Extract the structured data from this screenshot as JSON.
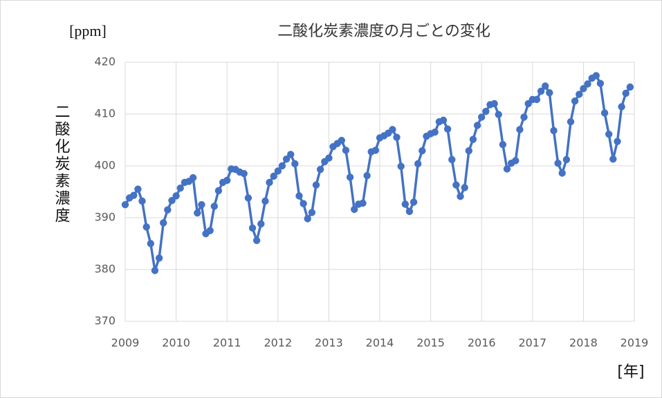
{
  "chart_data": {
    "type": "line",
    "title": "二酸化炭素濃度の月ごとの変化",
    "y_label": "二酸化炭素濃度",
    "y_unit": "[ppm]",
    "x_unit": "[年]",
    "xlim": [
      2009,
      2019
    ],
    "xticks": [
      2009,
      2010,
      2011,
      2012,
      2013,
      2014,
      2015,
      2016,
      2017,
      2018,
      2019
    ],
    "ylim": [
      370,
      420
    ],
    "yticks": [
      370,
      380,
      390,
      400,
      410,
      420
    ],
    "grid": true,
    "x": [
      2009,
      2009.083,
      2009.167,
      2009.25,
      2009.333,
      2009.417,
      2009.5,
      2009.583,
      2009.667,
      2009.75,
      2009.833,
      2009.917,
      2010,
      2010.083,
      2010.167,
      2010.25,
      2010.333,
      2010.417,
      2010.5,
      2010.583,
      2010.667,
      2010.75,
      2010.833,
      2010.917,
      2011,
      2011.083,
      2011.167,
      2011.25,
      2011.333,
      2011.417,
      2011.5,
      2011.583,
      2011.667,
      2011.75,
      2011.833,
      2011.917,
      2012,
      2012.083,
      2012.167,
      2012.25,
      2012.333,
      2012.417,
      2012.5,
      2012.583,
      2012.667,
      2012.75,
      2012.833,
      2012.917,
      2013,
      2013.083,
      2013.167,
      2013.25,
      2013.333,
      2013.417,
      2013.5,
      2013.583,
      2013.667,
      2013.75,
      2013.833,
      2013.917,
      2014,
      2014.083,
      2014.167,
      2014.25,
      2014.333,
      2014.417,
      2014.5,
      2014.583,
      2014.667,
      2014.75,
      2014.833,
      2014.917,
      2015,
      2015.083,
      2015.167,
      2015.25,
      2015.333,
      2015.417,
      2015.5,
      2015.583,
      2015.667,
      2015.75,
      2015.833,
      2015.917,
      2016,
      2016.083,
      2016.167,
      2016.25,
      2016.333,
      2016.417,
      2016.5,
      2016.583,
      2016.667,
      2016.75,
      2016.833,
      2016.917,
      2017,
      2017.083,
      2017.167,
      2017.25,
      2017.333,
      2017.417,
      2017.5,
      2017.583,
      2017.667,
      2017.75,
      2017.833,
      2017.917,
      2018,
      2018.083,
      2018.167,
      2018.25,
      2018.333,
      2018.417,
      2018.5,
      2018.583,
      2018.667,
      2018.75,
      2018.833,
      2018.917
    ],
    "series": [
      {
        "color": "#4472c4",
        "values": [
          392.5,
          393.8,
          394.3,
          395.5,
          393.2,
          388.2,
          385.0,
          379.8,
          382.2,
          389.0,
          391.5,
          393.3,
          394.2,
          395.7,
          396.8,
          397.0,
          397.7,
          390.9,
          392.5,
          386.9,
          387.5,
          392.2,
          395.2,
          396.8,
          397.2,
          399.4,
          399.3,
          398.8,
          398.5,
          393.8,
          388.0,
          385.6,
          388.8,
          393.2,
          396.8,
          398.0,
          399.0,
          400.0,
          401.3,
          402.2,
          400.4,
          394.2,
          392.7,
          389.8,
          391.0,
          396.3,
          399.3,
          400.8,
          401.5,
          403.7,
          404.3,
          404.9,
          403.0,
          397.8,
          391.6,
          392.6,
          392.8,
          398.1,
          402.7,
          403.0,
          405.4,
          405.8,
          406.3,
          407.0,
          405.5,
          399.9,
          392.6,
          391.2,
          393.0,
          400.4,
          402.9,
          405.7,
          406.2,
          406.5,
          408.5,
          408.8,
          407.1,
          401.2,
          396.3,
          394.1,
          395.8,
          402.9,
          405.1,
          407.8,
          409.4,
          410.5,
          411.8,
          412.0,
          409.9,
          404.1,
          399.4,
          400.5,
          401.0,
          407.0,
          409.4,
          412.0,
          412.8,
          412.8,
          414.4,
          415.4,
          414.1,
          406.8,
          400.5,
          398.6,
          401.2,
          408.5,
          412.5,
          413.8,
          414.9,
          415.8,
          416.9,
          417.4,
          415.9,
          410.2,
          406.1,
          401.3,
          404.7,
          411.4,
          414.0,
          415.2
        ]
      }
    ]
  }
}
